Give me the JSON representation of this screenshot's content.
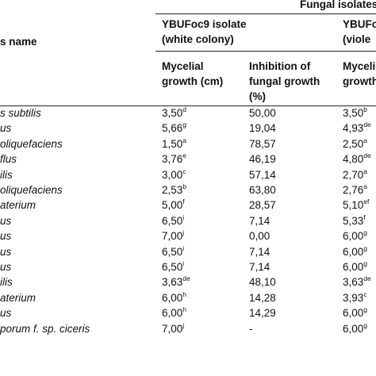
{
  "table": {
    "top_header": "Fungal isolates",
    "row_header": "s name",
    "groups": [
      {
        "name_line1": "YBUFoc9 isolate",
        "name_line2": "(white colony)"
      },
      {
        "name_line1": "YBUFo",
        "name_line2": "(viole"
      }
    ],
    "columns": [
      {
        "line1": "Mycelial",
        "line2": "growth (cm)",
        "line3": ""
      },
      {
        "line1": "Inhibition of",
        "line2": "fungal growth",
        "line3": "(%)"
      },
      {
        "line1": "Myceli",
        "line2": "growth",
        "line3": ""
      }
    ],
    "rows": [
      {
        "name": "s subtilis",
        "c1": "3,50",
        "c1_sup": "d",
        "c2": "50,00",
        "c3": "3,50",
        "c3_sup": "b"
      },
      {
        "name": "us",
        "c1": "5,66",
        "c1_sup": "g",
        "c2": "19,04",
        "c3": "4,93",
        "c3_sup": "de"
      },
      {
        "name": "oliquefaciens",
        "c1": "1,50",
        "c1_sup": "a",
        "c2": "78,57",
        "c3": "2,50",
        "c3_sup": "a"
      },
      {
        "name": "flus",
        "c1": "3,76",
        "c1_sup": "e",
        "c2": "46,19",
        "c3": "4,80",
        "c3_sup": "de"
      },
      {
        "name": "ilis",
        "c1": "3,00",
        "c1_sup": "c",
        "c2": "57,14",
        "c3": "2,70",
        "c3_sup": "a"
      },
      {
        "name": "oliquefaciens",
        "c1": "2,53",
        "c1_sup": "b",
        "c2": "63,80",
        "c3": "2,76",
        "c3_sup": "a"
      },
      {
        "name": "aterium",
        "c1": "5,00",
        "c1_sup": "f",
        "c2": "28,57",
        "c3": "5,10",
        "c3_sup": "ef"
      },
      {
        "name": "us",
        "c1": "6,50",
        "c1_sup": "i",
        "c2": "7,14",
        "c3": "5,33",
        "c3_sup": "f"
      },
      {
        "name": "us",
        "c1": "7,00",
        "c1_sup": "j",
        "c2": "0,00",
        "c3": "6,00",
        "c3_sup": "g"
      },
      {
        "name": "us",
        "c1": "6,50",
        "c1_sup": "i",
        "c2": "7,14",
        "c3": "6,00",
        "c3_sup": "g"
      },
      {
        "name": "us",
        "c1": "6,50",
        "c1_sup": "i",
        "c2": "7,14",
        "c3": "6,00",
        "c3_sup": "g"
      },
      {
        "name": "ilis",
        "c1": "3,63",
        "c1_sup": "de",
        "c2": "48,10",
        "c3": "3,63",
        "c3_sup": "de"
      },
      {
        "name": "aterium",
        "c1": "6,00",
        "c1_sup": "h",
        "c2": "14,28",
        "c3": "3,93",
        "c3_sup": "c"
      },
      {
        "name": "us",
        "c1": "6,00",
        "c1_sup": "h",
        "c2": "14,29",
        "c3": "6,00",
        "c3_sup": "g"
      },
      {
        "name": "porum f. sp. ciceris",
        "c1": "7,00",
        "c1_sup": "j",
        "c2": "-",
        "c3": "6,00",
        "c3_sup": "g"
      }
    ]
  }
}
